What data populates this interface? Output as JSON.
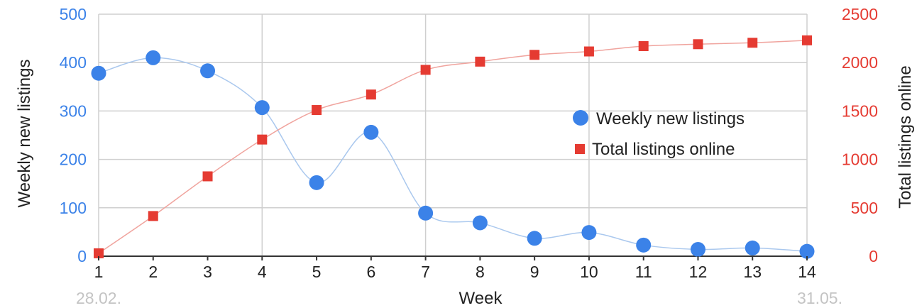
{
  "chart_data": {
    "type": "line",
    "xlabel": "Week",
    "x": [
      1,
      2,
      3,
      4,
      5,
      6,
      7,
      8,
      9,
      10,
      11,
      12,
      13,
      14
    ],
    "x_tick_labels": [
      "1",
      "2",
      "3",
      "4",
      "5",
      "6",
      "7",
      "8",
      "9",
      "10",
      "11",
      "12",
      "13",
      "14"
    ],
    "date_labels": {
      "start": "28.02.",
      "end": "31.05."
    },
    "y_left": {
      "label": "Weekly new listings",
      "range": [
        0,
        500
      ],
      "ticks": [
        "0",
        "100",
        "200",
        "300",
        "400",
        "500"
      ]
    },
    "y_right": {
      "label": "Total listings online",
      "range": [
        0,
        2500
      ],
      "ticks": [
        "0",
        "500",
        "1000",
        "1500",
        "2000",
        "2500"
      ]
    },
    "series": [
      {
        "name": "Weekly new listings",
        "axis": "left",
        "marker": "circle",
        "color": "#3b82e8",
        "line_color": "#aac8ee",
        "values": [
          378,
          410,
          383,
          307,
          152,
          256,
          89,
          69,
          37,
          49,
          23,
          14,
          17,
          10
        ]
      },
      {
        "name": "Total listings online",
        "axis": "right",
        "marker": "square",
        "color": "#e53b32",
        "line_color": "#f0a49e",
        "values": [
          30,
          415,
          825,
          1205,
          1510,
          1670,
          1925,
          2010,
          2080,
          2115,
          2170,
          2190,
          2205,
          2230
        ]
      }
    ],
    "grid": true,
    "legend_position": "right-center",
    "colors": {
      "left_axis": "#3b82e8",
      "right_axis": "#e53b32",
      "grid": "#cfcfcf"
    }
  }
}
